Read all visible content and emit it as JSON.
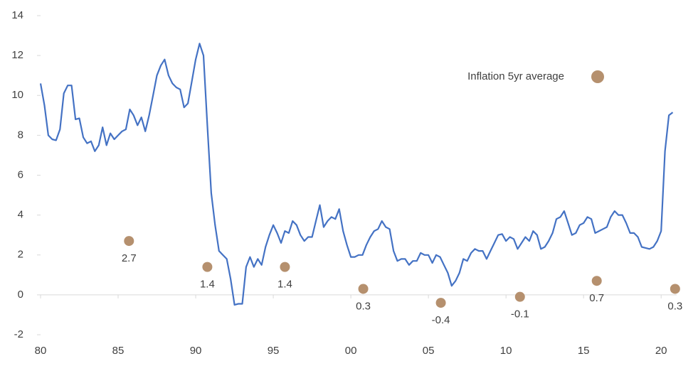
{
  "chart_data": {
    "type": "line",
    "xlim": [
      1980,
      2021
    ],
    "ylim": [
      -2,
      14
    ],
    "xticks": [
      {
        "value": 1980,
        "label": "80"
      },
      {
        "value": 1985,
        "label": "85"
      },
      {
        "value": 1990,
        "label": "90"
      },
      {
        "value": 1995,
        "label": "95"
      },
      {
        "value": 2000,
        "label": "00"
      },
      {
        "value": 2005,
        "label": "05"
      },
      {
        "value": 2010,
        "label": "10"
      },
      {
        "value": 2015,
        "label": "15"
      },
      {
        "value": 2020,
        "label": "20"
      }
    ],
    "yticks": [
      -2,
      0,
      2,
      4,
      6,
      8,
      10,
      12,
      14
    ],
    "grid": false,
    "legend": "upper right",
    "series": [
      {
        "type": "line",
        "color": "#4472c4",
        "x": [
          1980,
          1980.25,
          1980.5,
          1980.75,
          1981,
          1981.25,
          1981.5,
          1981.75,
          1982,
          1982.25,
          1982.5,
          1982.75,
          1983,
          1983.25,
          1983.5,
          1983.75,
          1984,
          1984.25,
          1984.5,
          1984.75,
          1985,
          1985.25,
          1985.5,
          1985.75,
          1986,
          1986.25,
          1986.5,
          1986.75,
          1987,
          1987.25,
          1987.5,
          1987.75,
          1988,
          1988.25,
          1988.5,
          1988.75,
          1989,
          1989.25,
          1989.5,
          1989.75,
          1990,
          1990.25,
          1990.5,
          1990.75,
          1991,
          1991.25,
          1991.5,
          1991.75,
          1992,
          1992.25,
          1992.5,
          1992.75,
          1993,
          1993.25,
          1993.5,
          1993.75,
          1994,
          1994.25,
          1994.5,
          1994.75,
          1995,
          1995.25,
          1995.5,
          1995.75,
          1996,
          1996.25,
          1996.5,
          1996.75,
          1997,
          1997.25,
          1997.5,
          1997.75,
          1998,
          1998.25,
          1998.5,
          1998.75,
          1999,
          1999.25,
          1999.5,
          1999.75,
          2000,
          2000.25,
          2000.5,
          2000.75,
          2001,
          2001.25,
          2001.5,
          2001.75,
          2002,
          2002.25,
          2002.5,
          2002.75,
          2003,
          2003.25,
          2003.5,
          2003.75,
          2004,
          2004.25,
          2004.5,
          2004.75,
          2005,
          2005.25,
          2005.5,
          2005.75,
          2006,
          2006.25,
          2006.5,
          2006.75,
          2007,
          2007.25,
          2007.5,
          2007.75,
          2008,
          2008.25,
          2008.5,
          2008.75,
          2009,
          2009.25,
          2009.5,
          2009.75,
          2010,
          2010.25,
          2010.5,
          2010.75,
          2011,
          2011.25,
          2011.5,
          2011.75,
          2012,
          2012.25,
          2012.5,
          2012.75,
          2013,
          2013.25,
          2013.5,
          2013.75,
          2014,
          2014.25,
          2014.5,
          2014.75,
          2015,
          2015.25,
          2015.5,
          2015.75,
          2016,
          2016.25,
          2016.5,
          2016.75,
          2017,
          2017.25,
          2017.5,
          2017.75,
          2018,
          2018.25,
          2018.5,
          2018.75,
          2019,
          2019.25,
          2019.5,
          2019.75,
          2020,
          2020.25,
          2020.5,
          2020.75
        ],
        "values": [
          10.6,
          9.5,
          8.0,
          7.8,
          7.75,
          8.3,
          10.1,
          10.5,
          10.5,
          8.8,
          8.85,
          7.9,
          7.6,
          7.7,
          7.2,
          7.5,
          8.4,
          7.5,
          8.1,
          7.8,
          8.0,
          8.2,
          8.3,
          9.3,
          9.0,
          8.5,
          8.9,
          8.2,
          9.0,
          10.0,
          11.0,
          11.5,
          11.8,
          11.0,
          10.6,
          10.4,
          10.3,
          9.4,
          9.6,
          10.7,
          11.8,
          12.6,
          12.0,
          8.5,
          5.1,
          3.5,
          2.2,
          2.0,
          1.8,
          0.8,
          -0.5,
          -0.45,
          -0.45,
          1.4,
          1.9,
          1.4,
          1.8,
          1.5,
          2.4,
          3.0,
          3.5,
          3.1,
          2.6,
          3.2,
          3.1,
          3.7,
          3.5,
          3.0,
          2.7,
          2.9,
          2.9,
          3.7,
          4.5,
          3.4,
          3.7,
          3.9,
          3.8,
          4.3,
          3.2,
          2.5,
          1.9,
          1.9,
          2.0,
          2.0,
          2.5,
          2.9,
          3.2,
          3.3,
          3.7,
          3.4,
          3.3,
          2.2,
          1.7,
          1.8,
          1.8,
          1.5,
          1.7,
          1.7,
          2.1,
          2.0,
          2.0,
          1.6,
          2.0,
          1.9,
          1.5,
          1.1,
          0.45,
          0.7,
          1.1,
          1.8,
          1.7,
          2.1,
          2.3,
          2.2,
          2.2,
          1.8,
          2.2,
          2.6,
          3.0,
          3.05,
          2.7,
          2.9,
          2.8,
          2.3,
          2.6,
          2.9,
          2.7,
          3.2,
          3.0,
          2.3,
          2.4,
          2.7,
          3.1,
          3.8,
          3.9,
          4.2,
          3.6,
          3.0,
          3.1,
          3.5,
          3.6,
          3.9,
          3.8,
          3.1,
          3.2,
          3.3,
          3.4,
          3.9,
          4.2,
          4.0,
          4.0,
          3.6,
          3.1,
          3.1,
          2.9,
          2.4,
          2.35,
          2.3,
          2.4,
          2.7,
          3.2,
          7.2,
          9.0,
          9.15
        ]
      },
      {
        "type": "scatter",
        "name": "Inflation 5yr average",
        "color": "#b5906e",
        "data_labels": true,
        "x": [
          1985.7,
          1990.75,
          1995.75,
          2000.8,
          2005.8,
          2010.9,
          2015.85,
          2020.9
        ],
        "values": [
          2.7,
          1.4,
          1.4,
          0.3,
          -0.4,
          -0.1,
          0.7,
          0.3
        ]
      }
    ]
  }
}
